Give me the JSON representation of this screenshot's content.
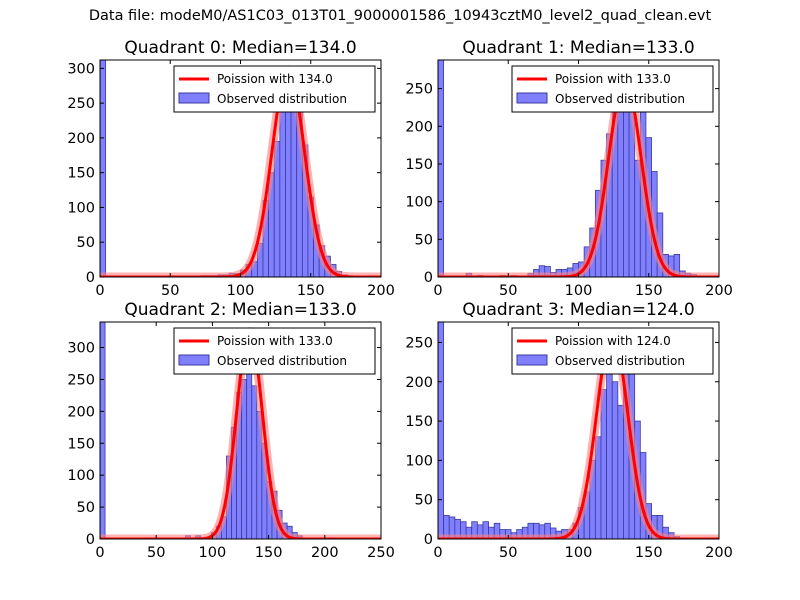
{
  "figure": {
    "suptitle": "Data file: modeM0/AS1C03_013T01_9000001586_10943cztM0_level2_quad_clean.evt"
  },
  "colors": {
    "bar_fill": "#8080ff",
    "bar_edge": "#3a3aa0",
    "curve": "#ff0000",
    "curve_glow": "#ff8080",
    "axes": "#000000"
  },
  "chart_data": [
    {
      "type": "bar",
      "title": "Quadrant 0: Median=134.0",
      "xlim": [
        0,
        200
      ],
      "ylim": [
        0,
        312
      ],
      "xticks": [
        0,
        50,
        100,
        150,
        200
      ],
      "yticks": [
        0,
        50,
        100,
        150,
        200,
        250,
        300
      ],
      "bin_width": 4,
      "bars": [
        [
          0,
          312
        ],
        [
          72,
          2
        ],
        [
          76,
          2
        ],
        [
          80,
          2
        ],
        [
          84,
          3
        ],
        [
          88,
          3
        ],
        [
          92,
          5
        ],
        [
          96,
          5
        ],
        [
          100,
          10
        ],
        [
          104,
          18
        ],
        [
          108,
          22
        ],
        [
          112,
          48
        ],
        [
          116,
          110
        ],
        [
          120,
          150
        ],
        [
          124,
          195
        ],
        [
          128,
          270
        ],
        [
          132,
          295
        ],
        [
          136,
          280
        ],
        [
          140,
          250
        ],
        [
          144,
          190
        ],
        [
          148,
          115
        ],
        [
          152,
          75
        ],
        [
          156,
          45
        ],
        [
          160,
          30
        ],
        [
          164,
          18
        ],
        [
          168,
          8
        ],
        [
          172,
          3
        ]
      ],
      "poisson_mean": 134,
      "poisson_peak": 298,
      "legend": {
        "curve": "Poission with 134.0",
        "bars": "Observed distribution",
        "position": "top-right"
      }
    },
    {
      "type": "bar",
      "title": "Quadrant 1: Median=133.0",
      "xlim": [
        0,
        200
      ],
      "ylim": [
        0,
        288
      ],
      "xticks": [
        0,
        50,
        100,
        150,
        200
      ],
      "yticks": [
        0,
        50,
        100,
        150,
        200,
        250
      ],
      "bin_width": 4,
      "bars": [
        [
          0,
          288
        ],
        [
          20,
          5
        ],
        [
          28,
          2
        ],
        [
          44,
          2
        ],
        [
          52,
          2
        ],
        [
          64,
          5
        ],
        [
          68,
          10
        ],
        [
          72,
          15
        ],
        [
          76,
          14
        ],
        [
          80,
          6
        ],
        [
          84,
          10
        ],
        [
          88,
          10
        ],
        [
          92,
          12
        ],
        [
          96,
          18
        ],
        [
          100,
          20
        ],
        [
          104,
          40
        ],
        [
          108,
          65
        ],
        [
          112,
          115
        ],
        [
          116,
          155
        ],
        [
          120,
          190
        ],
        [
          124,
          230
        ],
        [
          128,
          260
        ],
        [
          132,
          225
        ],
        [
          136,
          245
        ],
        [
          140,
          155
        ],
        [
          144,
          250
        ],
        [
          148,
          185
        ],
        [
          152,
          140
        ],
        [
          156,
          85
        ],
        [
          160,
          30
        ],
        [
          164,
          28
        ],
        [
          168,
          30
        ],
        [
          172,
          8
        ],
        [
          176,
          5
        ],
        [
          180,
          3
        ]
      ],
      "poisson_mean": 133,
      "poisson_peak": 262,
      "legend": {
        "curve": "Poission with 133.0",
        "bars": "Observed distribution",
        "position": "top-right"
      }
    },
    {
      "type": "bar",
      "title": "Quadrant 2: Median=133.0",
      "xlim": [
        0,
        250
      ],
      "ylim": [
        0,
        340
      ],
      "xticks": [
        0,
        50,
        100,
        150,
        200,
        250
      ],
      "yticks": [
        0,
        50,
        100,
        150,
        200,
        250,
        300
      ],
      "bin_width": 4.5,
      "bars": [
        [
          0,
          340
        ],
        [
          76,
          5
        ],
        [
          85,
          5
        ],
        [
          99,
          10
        ],
        [
          103.5,
          20
        ],
        [
          108,
          35
        ],
        [
          112.5,
          130
        ],
        [
          117,
          175
        ],
        [
          121.5,
          230
        ],
        [
          126,
          250
        ],
        [
          130.5,
          330
        ],
        [
          135,
          240
        ],
        [
          139.5,
          200
        ],
        [
          144,
          150
        ],
        [
          148.5,
          90
        ],
        [
          153,
          75
        ],
        [
          157.5,
          45
        ],
        [
          162,
          25
        ],
        [
          166.5,
          20
        ],
        [
          171,
          10
        ],
        [
          175.5,
          5
        ]
      ],
      "poisson_mean": 133,
      "poisson_peak": 325,
      "legend": {
        "curve": "Poission with 133.0",
        "bars": "Observed distribution",
        "position": "top-right"
      }
    },
    {
      "type": "bar",
      "title": "Quadrant 3: Median=124.0",
      "xlim": [
        0,
        200
      ],
      "ylim": [
        0,
        276
      ],
      "xticks": [
        0,
        50,
        100,
        150,
        200
      ],
      "yticks": [
        0,
        50,
        100,
        150,
        200,
        250
      ],
      "bin_width": 4,
      "bars": [
        [
          0,
          276
        ],
        [
          4,
          30
        ],
        [
          8,
          28
        ],
        [
          12,
          25
        ],
        [
          16,
          22
        ],
        [
          20,
          15
        ],
        [
          24,
          22
        ],
        [
          28,
          18
        ],
        [
          32,
          22
        ],
        [
          36,
          15
        ],
        [
          40,
          20
        ],
        [
          44,
          12
        ],
        [
          48,
          12
        ],
        [
          52,
          8
        ],
        [
          56,
          12
        ],
        [
          60,
          15
        ],
        [
          64,
          20
        ],
        [
          68,
          20
        ],
        [
          72,
          18
        ],
        [
          76,
          20
        ],
        [
          80,
          14
        ],
        [
          84,
          10
        ],
        [
          88,
          12
        ],
        [
          92,
          12
        ],
        [
          96,
          20
        ],
        [
          100,
          40
        ],
        [
          104,
          60
        ],
        [
          108,
          100
        ],
        [
          112,
          130
        ],
        [
          116,
          190
        ],
        [
          120,
          240
        ],
        [
          124,
          200
        ],
        [
          128,
          170
        ],
        [
          132,
          260
        ],
        [
          136,
          225
        ],
        [
          140,
          150
        ],
        [
          144,
          110
        ],
        [
          148,
          45
        ],
        [
          152,
          30
        ],
        [
          156,
          30
        ],
        [
          160,
          15
        ],
        [
          164,
          8
        ],
        [
          168,
          3
        ]
      ],
      "poisson_mean": 124,
      "poisson_peak": 262,
      "legend": {
        "curve": "Poission with 124.0",
        "bars": "Observed distribution",
        "position": "top-right"
      }
    }
  ]
}
